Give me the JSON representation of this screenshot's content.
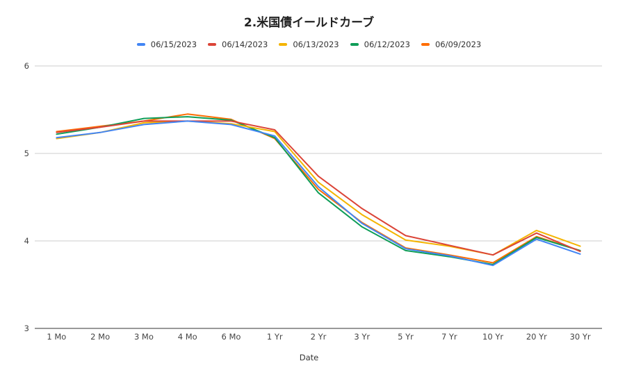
{
  "chart_data": {
    "type": "line",
    "title": "2.米国債イールドカーブ",
    "xlabel": "Date",
    "ylabel": "",
    "ylim": [
      3,
      6
    ],
    "yticks": [
      3,
      4,
      5,
      6
    ],
    "grid": true,
    "legend_position": "top",
    "categories": [
      "1 Mo",
      "2 Mo",
      "3 Mo",
      "4 Mo",
      "6 Mo",
      "1 Yr",
      "2 Yr",
      "3 Yr",
      "5 Yr",
      "7 Yr",
      "10 Yr",
      "20 Yr",
      "30 Yr"
    ],
    "series": [
      {
        "name": "06/15/2023",
        "color": "#4285F4",
        "values": [
          5.18,
          5.24,
          5.33,
          5.37,
          5.33,
          5.2,
          4.62,
          4.2,
          3.91,
          3.83,
          3.72,
          4.02,
          3.85
        ]
      },
      {
        "name": "06/14/2023",
        "color": "#DB4437",
        "values": [
          5.24,
          5.3,
          5.37,
          5.37,
          5.37,
          5.27,
          4.74,
          4.37,
          4.06,
          3.95,
          3.84,
          4.09,
          3.88
        ]
      },
      {
        "name": "06/13/2023",
        "color": "#F4B400",
        "values": [
          5.17,
          5.24,
          5.35,
          5.37,
          5.34,
          5.25,
          4.67,
          4.3,
          4.01,
          3.94,
          3.84,
          4.12,
          3.94
        ]
      },
      {
        "name": "06/12/2023",
        "color": "#0F9D58",
        "values": [
          5.22,
          5.3,
          5.4,
          5.42,
          5.38,
          5.18,
          4.55,
          4.16,
          3.89,
          3.82,
          3.73,
          4.04,
          3.89
        ]
      },
      {
        "name": "06/09/2023",
        "color": "#FF6D00",
        "values": [
          5.25,
          5.31,
          5.37,
          5.45,
          5.39,
          5.17,
          4.59,
          4.21,
          3.92,
          3.84,
          3.75,
          4.05,
          3.89
        ]
      }
    ]
  }
}
